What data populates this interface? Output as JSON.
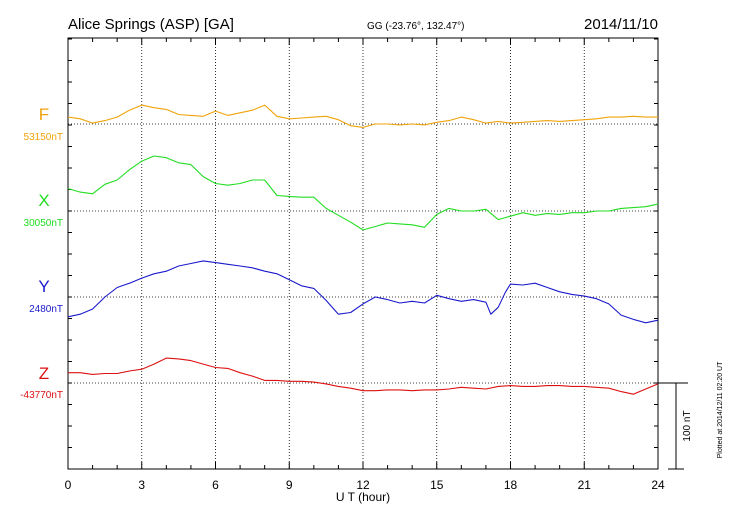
{
  "header": {
    "station": "Alice Springs (ASP)  [GA]",
    "coords": "GG (-23.76°, 132.47°)",
    "date": "2014/11/10"
  },
  "side_note": "Plotted at 2014/12/11 02:20 UT",
  "scale_bar_label": "100 nT",
  "chart_data": {
    "type": "line",
    "xlabel": "U T (hour)",
    "xlim": [
      0,
      24
    ],
    "x_ticks": [
      0,
      3,
      6,
      9,
      12,
      15,
      18,
      21,
      24
    ],
    "grid": true,
    "scale_nT": 100,
    "series": [
      {
        "name": "F",
        "baseline_label": "53150nT",
        "color": "#f0a30a",
        "x": [
          0,
          0.5,
          1,
          1.5,
          2,
          2.5,
          3,
          3.5,
          4,
          4.5,
          5,
          5.5,
          6,
          6.5,
          7,
          7.5,
          8,
          8.5,
          9,
          9.5,
          10,
          10.5,
          11,
          11.5,
          12,
          12.5,
          13,
          13.5,
          14,
          14.5,
          15,
          15.5,
          16,
          16.5,
          17,
          17.5,
          18,
          18.5,
          19,
          19.5,
          20,
          20.5,
          21,
          21.5,
          22,
          22.5,
          23,
          23.5,
          24
        ],
        "y": [
          8,
          6,
          1,
          4,
          8,
          16,
          22,
          19,
          17,
          11,
          10,
          9,
          15,
          10,
          13,
          16,
          22,
          9,
          6,
          7,
          8,
          9,
          5,
          -2,
          -4,
          0,
          0,
          -1,
          0,
          -1,
          2,
          4,
          8,
          5,
          1,
          3,
          1,
          2,
          3,
          4,
          3,
          4,
          5,
          6,
          8,
          8,
          9,
          8,
          8
        ]
      },
      {
        "name": "X",
        "baseline_label": "30050nT",
        "color": "#22dd22",
        "x": [
          0,
          0.5,
          1,
          1.5,
          2,
          2.5,
          3,
          3.5,
          4,
          4.5,
          5,
          5.5,
          6,
          6.5,
          7,
          7.5,
          8,
          8.5,
          9,
          9.5,
          10,
          10.5,
          11,
          11.5,
          12,
          12.5,
          13,
          13.5,
          14,
          14.5,
          15,
          15.5,
          16,
          16.5,
          17,
          17.5,
          18,
          18.5,
          19,
          19.5,
          20,
          20.5,
          21,
          21.5,
          22,
          22.5,
          23,
          23.5,
          24
        ],
        "y": [
          26,
          22,
          20,
          31,
          36,
          48,
          58,
          64,
          62,
          56,
          54,
          40,
          32,
          30,
          32,
          36,
          36,
          18,
          17,
          16,
          16,
          3,
          -5,
          -13,
          -22,
          -18,
          -14,
          -15,
          -16,
          -19,
          -4,
          3,
          0,
          0,
          2,
          -10,
          -6,
          -2,
          -5,
          -3,
          -4,
          -2,
          -2,
          0,
          0,
          3,
          4,
          5,
          8
        ]
      },
      {
        "name": "Y",
        "baseline_label": "2480nT",
        "color": "#1a1acc",
        "x": [
          0,
          0.5,
          1,
          1.5,
          2,
          2.5,
          3,
          3.5,
          4,
          4.5,
          5,
          5.5,
          6,
          6.5,
          7,
          7.5,
          8,
          8.5,
          9,
          9.5,
          10,
          10.5,
          11,
          11.5,
          12,
          12.5,
          13,
          13.5,
          14,
          14.5,
          15,
          15.5,
          16,
          16.5,
          17,
          17.2,
          17.5,
          17.8,
          18,
          18.5,
          19,
          19.5,
          20,
          20.5,
          21,
          21.5,
          22,
          22.5,
          23,
          23.5,
          24
        ],
        "y": [
          -23,
          -20,
          -14,
          0,
          11,
          16,
          22,
          27,
          30,
          36,
          39,
          42,
          40,
          38,
          36,
          34,
          30,
          27,
          20,
          13,
          10,
          -4,
          -20,
          -18,
          -8,
          0,
          -3,
          -7,
          -5,
          -7,
          2,
          -2,
          -5,
          -3,
          -6,
          -20,
          -12,
          6,
          15,
          14,
          16,
          11,
          6,
          3,
          1,
          -2,
          -8,
          -21,
          -26,
          -30,
          -27
        ]
      },
      {
        "name": "Z",
        "baseline_label": "-43770nT",
        "color": "#dd1111",
        "x": [
          0,
          0.5,
          1,
          1.5,
          2,
          2.5,
          3,
          3.5,
          4,
          4.5,
          5,
          5.5,
          6,
          6.5,
          7,
          7.5,
          8,
          8.5,
          9,
          9.5,
          10,
          10.5,
          11,
          11.5,
          12,
          12.5,
          13,
          13.5,
          14,
          14.5,
          15,
          15.5,
          16,
          16.5,
          17,
          17.5,
          18,
          18.5,
          19,
          19.5,
          20,
          20.5,
          21,
          21.5,
          22,
          22.5,
          23,
          23.5,
          24
        ],
        "y": [
          12,
          12,
          10,
          11,
          11,
          14,
          16,
          22,
          29,
          28,
          26,
          22,
          18,
          17,
          12,
          8,
          3,
          3,
          2,
          2,
          1,
          -1,
          -4,
          -6,
          -9,
          -9,
          -8,
          -8,
          -9,
          -8,
          -8,
          -7,
          -5,
          -6,
          -7,
          -4,
          -3,
          -4,
          -4,
          -3,
          -3,
          -4,
          -4,
          -5,
          -6,
          -10,
          -13,
          -7,
          -1
        ]
      }
    ]
  }
}
